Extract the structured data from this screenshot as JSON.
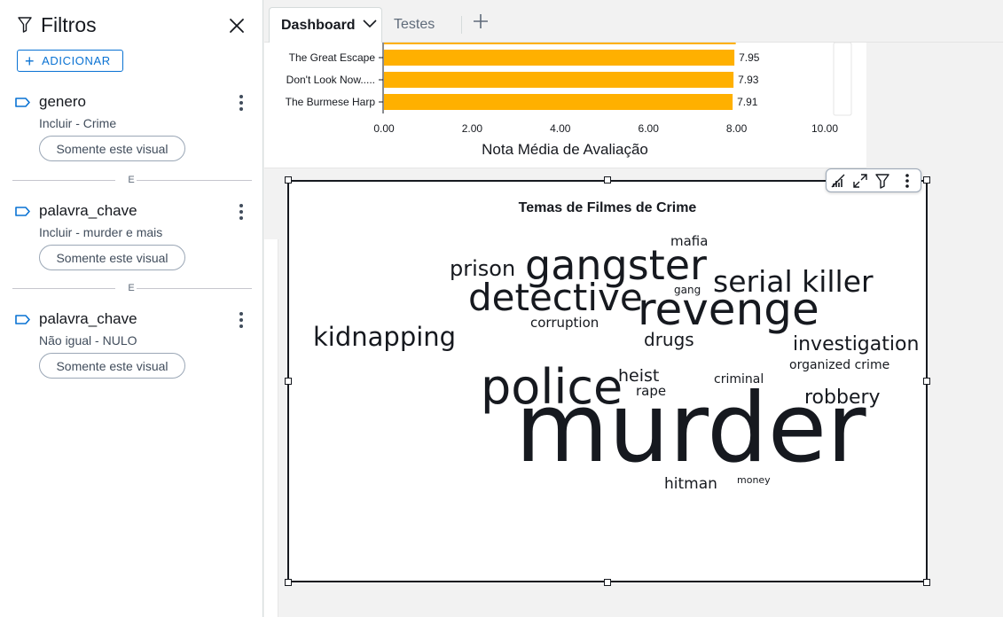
{
  "filters_panel": {
    "title": "Filtros",
    "add_label": "ADICIONAR",
    "separator_label": "E",
    "items": [
      {
        "field": "genero",
        "condition": "Incluir - Crime",
        "scope": "Somente este visual"
      },
      {
        "field": "palavra_chave",
        "condition": "Incluir - murder e mais",
        "scope": "Somente este visual"
      },
      {
        "field": "palavra_chave",
        "condition": "Não igual - NULO",
        "scope": "Somente este visual"
      }
    ]
  },
  "tabs": [
    {
      "label": "Dashboard",
      "active": true
    },
    {
      "label": "Testes",
      "active": false
    }
  ],
  "bar_chart": {
    "chart_data": {
      "type": "bar",
      "orientation": "horizontal",
      "categories": [
        "The Great Escape",
        "Don't Look Now.....",
        "The Burmese Harp"
      ],
      "values": [
        7.95,
        7.93,
        7.91
      ],
      "value_labels": [
        "7.95",
        "7.93",
        "7.91"
      ],
      "xlabel": "Nota Média de Avaliação",
      "xlim": [
        0,
        10
      ],
      "x_ticks": [
        "0.00",
        "2.00",
        "4.00",
        "6.00",
        "8.00",
        "10.00"
      ],
      "bar_color": "#ffb000"
    }
  },
  "word_cloud": {
    "title": "Temas de Filmes de Crime",
    "words": [
      {
        "text": "mafia"
      },
      {
        "text": "prison"
      },
      {
        "text": "gangster"
      },
      {
        "text": "serial killer"
      },
      {
        "text": "detective"
      },
      {
        "text": "gang"
      },
      {
        "text": "revenge"
      },
      {
        "text": "corruption"
      },
      {
        "text": "kidnapping"
      },
      {
        "text": "drugs"
      },
      {
        "text": "investigation"
      },
      {
        "text": "organized crime"
      },
      {
        "text": "heist"
      },
      {
        "text": "criminal"
      },
      {
        "text": "police"
      },
      {
        "text": "rape"
      },
      {
        "text": "robbery"
      },
      {
        "text": "murder"
      },
      {
        "text": "hitman"
      },
      {
        "text": "money"
      }
    ]
  },
  "colors": {
    "accent": "#0972d3",
    "bar": "#ffb000",
    "text": "#16191f"
  }
}
